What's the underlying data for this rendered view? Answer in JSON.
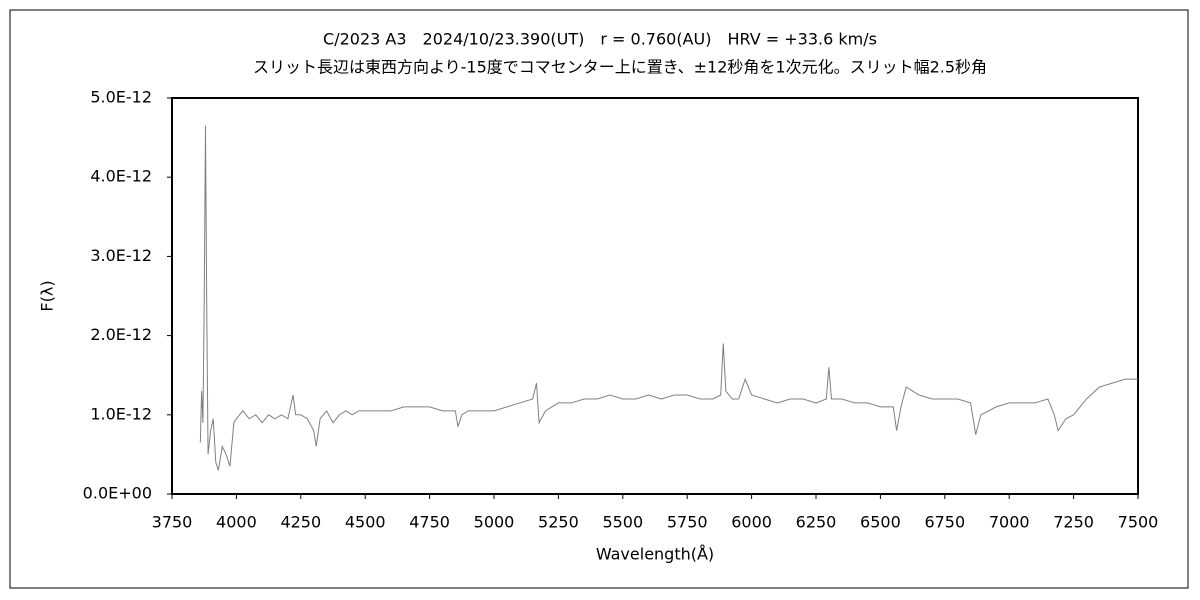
{
  "chart_data": {
    "type": "line",
    "title": "C/2023 A3　2024/10/23.390(UT)　r = 0.760(AU)　HRV = +33.6 km/s",
    "subtitle": "スリット長辺は東西方向より-15度でコマセンター上に置き、±12秒角を1次元化。スリット幅2.5秒角",
    "xlabel": "Wavelength(Å)",
    "ylabel": "F(λ)",
    "x": [
      3860,
      3865,
      3870,
      3875,
      3880,
      3885,
      3890,
      3900,
      3910,
      3920,
      3930,
      3945,
      3960,
      3975,
      3990,
      4000,
      4025,
      4050,
      4075,
      4100,
      4125,
      4150,
      4175,
      4200,
      4220,
      4230,
      4250,
      4275,
      4300,
      4310,
      4325,
      4350,
      4375,
      4400,
      4425,
      4450,
      4475,
      4500,
      4550,
      4600,
      4650,
      4700,
      4750,
      4800,
      4850,
      4860,
      4875,
      4900,
      4950,
      5000,
      5050,
      5100,
      5150,
      5165,
      5175,
      5200,
      5250,
      5300,
      5350,
      5400,
      5450,
      5500,
      5550,
      5600,
      5650,
      5700,
      5750,
      5800,
      5850,
      5880,
      5890,
      5900,
      5925,
      5950,
      5975,
      6000,
      6050,
      6100,
      6150,
      6200,
      6250,
      6290,
      6300,
      6310,
      6350,
      6400,
      6450,
      6500,
      6550,
      6563,
      6580,
      6600,
      6650,
      6700,
      6750,
      6800,
      6850,
      6870,
      6890,
      6950,
      7000,
      7050,
      7100,
      7150,
      7175,
      7190,
      7220,
      7250,
      7300,
      7350,
      7400,
      7450,
      7500
    ],
    "series": [
      {
        "color": "#808080",
        "values": [
          6.5e-13,
          1.3e-12,
          9e-13,
          2.4e-12,
          4.65e-12,
          2.3e-12,
          5e-13,
          8e-13,
          9.5e-13,
          4e-13,
          3e-13,
          6e-13,
          5e-13,
          3.5e-13,
          9e-13,
          9.5e-13,
          1.05e-12,
          9.5e-13,
          1e-12,
          9e-13,
          1e-12,
          9.5e-13,
          1e-12,
          9.5e-13,
          1.25e-12,
          1e-12,
          1e-12,
          9.5e-13,
          8e-13,
          6e-13,
          9.5e-13,
          1.05e-12,
          9e-13,
          1e-12,
          1.05e-12,
          1e-12,
          1.05e-12,
          1.05e-12,
          1.05e-12,
          1.05e-12,
          1.1e-12,
          1.1e-12,
          1.1e-12,
          1.05e-12,
          1.05e-12,
          8.5e-13,
          1e-12,
          1.05e-12,
          1.05e-12,
          1.05e-12,
          1.1e-12,
          1.15e-12,
          1.2e-12,
          1.4e-12,
          9e-13,
          1.05e-12,
          1.15e-12,
          1.15e-12,
          1.2e-12,
          1.2e-12,
          1.25e-12,
          1.2e-12,
          1.2e-12,
          1.25e-12,
          1.2e-12,
          1.25e-12,
          1.25e-12,
          1.2e-12,
          1.2e-12,
          1.25e-12,
          1.9e-12,
          1.3e-12,
          1.2e-12,
          1.2e-12,
          1.45e-12,
          1.25e-12,
          1.2e-12,
          1.15e-12,
          1.2e-12,
          1.2e-12,
          1.15e-12,
          1.2e-12,
          1.6e-12,
          1.2e-12,
          1.2e-12,
          1.15e-12,
          1.15e-12,
          1.1e-12,
          1.1e-12,
          8e-13,
          1.1e-12,
          1.35e-12,
          1.25e-12,
          1.2e-12,
          1.2e-12,
          1.2e-12,
          1.15e-12,
          7.5e-13,
          1e-12,
          1.1e-12,
          1.15e-12,
          1.15e-12,
          1.15e-12,
          1.2e-12,
          1e-12,
          8e-13,
          9.5e-13,
          1e-12,
          1.2e-12,
          1.35e-12,
          1.4e-12,
          1.45e-12,
          1.45e-12
        ]
      }
    ],
    "xlim": [
      3750,
      7500
    ],
    "xticks": [
      3750,
      4000,
      4250,
      4500,
      4750,
      5000,
      5250,
      5500,
      5750,
      6000,
      6250,
      6500,
      6750,
      7000,
      7250,
      7500
    ],
    "ylim": [
      0,
      5e-12
    ],
    "yticks": [
      {
        "value": 0,
        "label": "0.0E+00"
      },
      {
        "value": 1e-12,
        "label": "1.0E-12"
      },
      {
        "value": 2e-12,
        "label": "2.0E-12"
      },
      {
        "value": 3e-12,
        "label": "3.0E-12"
      },
      {
        "value": 4e-12,
        "label": "4.0E-12"
      },
      {
        "value": 5e-12,
        "label": "5.0E-12"
      }
    ],
    "grid": false
  }
}
